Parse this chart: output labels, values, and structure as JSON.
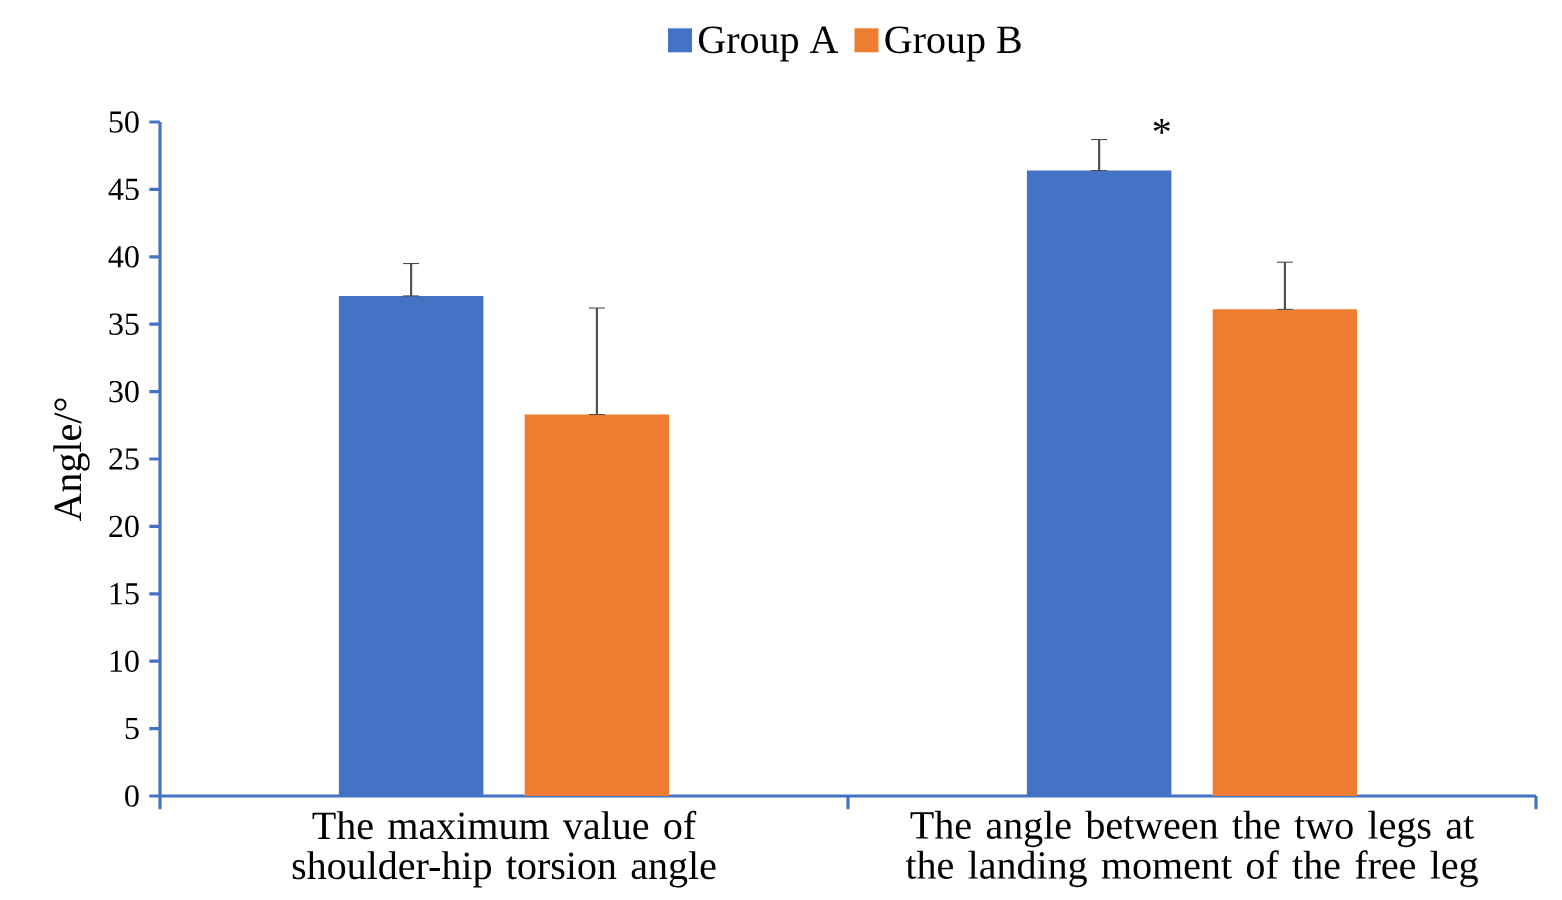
{
  "chart_data": {
    "type": "bar",
    "ylabel": "Angle/°",
    "categories": [
      "The maximum value of shoulder-hip torsion angle",
      "The angle between the two legs at the landing moment of the free leg"
    ],
    "series": [
      {
        "name": "Group A",
        "color": "#4472c4",
        "values": [
          37.1,
          46.4
        ],
        "errors": [
          [
            37.1,
            39.5
          ],
          [
            46.4,
            48.7
          ]
        ]
      },
      {
        "name": "Group B",
        "color": "#ed7d31",
        "values": [
          28.3,
          36.1
        ],
        "errors": [
          [
            28.3,
            36.2
          ],
          [
            36.1,
            39.6
          ]
        ]
      }
    ],
    "ylim": [
      0,
      50
    ],
    "yticks": [
      0,
      5,
      10,
      15,
      20,
      25,
      30,
      35,
      40,
      45,
      50
    ],
    "annotations": [
      "*"
    ],
    "grid": false,
    "legend": "top"
  }
}
